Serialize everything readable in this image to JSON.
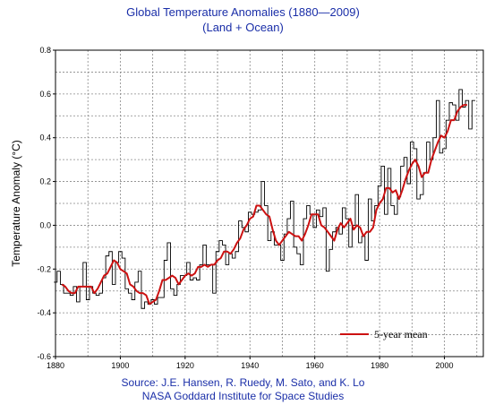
{
  "chart_data": {
    "type": "line",
    "title": "Global Temperature Anomalies (1880—2009)",
    "subtitle": "(Land + Ocean)",
    "xlabel": "",
    "ylabel": "Temperature Anomaly (°C)",
    "xlim": [
      1880,
      2012
    ],
    "ylim": [
      -0.6,
      0.8
    ],
    "xticks": [
      1880,
      1900,
      1920,
      1940,
      1960,
      1980,
      2000
    ],
    "yticks": [
      -0.6,
      -0.4,
      -0.2,
      0.0,
      0.2,
      0.4,
      0.6,
      0.8
    ],
    "ytick_labels": [
      "-0.6",
      "-0.4",
      "-0.2",
      "0.0",
      "0.2",
      "0.4",
      "0.6",
      "0.8"
    ],
    "grid": true,
    "legend_position": "bottom-right",
    "annual": {
      "x": [
        1880,
        1881,
        1882,
        1883,
        1884,
        1885,
        1886,
        1887,
        1888,
        1889,
        1890,
        1891,
        1892,
        1893,
        1894,
        1895,
        1896,
        1897,
        1898,
        1899,
        1900,
        1901,
        1902,
        1903,
        1904,
        1905,
        1906,
        1907,
        1908,
        1909,
        1910,
        1911,
        1912,
        1913,
        1914,
        1915,
        1916,
        1917,
        1918,
        1919,
        1920,
        1921,
        1922,
        1923,
        1924,
        1925,
        1926,
        1927,
        1928,
        1929,
        1930,
        1931,
        1932,
        1933,
        1934,
        1935,
        1936,
        1937,
        1938,
        1939,
        1940,
        1941,
        1942,
        1943,
        1944,
        1945,
        1946,
        1947,
        1948,
        1949,
        1950,
        1951,
        1952,
        1953,
        1954,
        1955,
        1956,
        1957,
        1958,
        1959,
        1960,
        1961,
        1962,
        1963,
        1964,
        1965,
        1966,
        1967,
        1968,
        1969,
        1970,
        1971,
        1972,
        1973,
        1974,
        1975,
        1976,
        1977,
        1978,
        1979,
        1980,
        1981,
        1982,
        1983,
        1984,
        1985,
        1986,
        1987,
        1988,
        1989,
        1990,
        1991,
        1992,
        1993,
        1994,
        1995,
        1996,
        1997,
        1998,
        1999,
        2000,
        2001,
        2002,
        2003,
        2004,
        2005,
        2006,
        2007,
        2008,
        2009
      ],
      "y": [
        -0.26,
        -0.21,
        -0.27,
        -0.31,
        -0.31,
        -0.32,
        -0.28,
        -0.35,
        -0.28,
        -0.17,
        -0.34,
        -0.28,
        -0.31,
        -0.32,
        -0.31,
        -0.24,
        -0.14,
        -0.12,
        -0.27,
        -0.17,
        -0.12,
        -0.15,
        -0.29,
        -0.31,
        -0.34,
        -0.26,
        -0.21,
        -0.38,
        -0.35,
        -0.36,
        -0.34,
        -0.36,
        -0.33,
        -0.33,
        -0.16,
        -0.08,
        -0.29,
        -0.32,
        -0.27,
        -0.23,
        -0.23,
        -0.17,
        -0.25,
        -0.24,
        -0.25,
        -0.18,
        -0.09,
        -0.18,
        -0.18,
        -0.31,
        -0.12,
        -0.07,
        -0.09,
        -0.18,
        -0.13,
        -0.15,
        -0.12,
        0.02,
        -0.01,
        -0.03,
        0.06,
        0.05,
        0.06,
        0.07,
        0.2,
        0.09,
        -0.07,
        -0.03,
        -0.09,
        -0.09,
        -0.16,
        -0.04,
        0.03,
        0.11,
        -0.1,
        -0.13,
        -0.18,
        0.03,
        0.09,
        0.05,
        -0.01,
        0.07,
        0.04,
        0.08,
        -0.21,
        -0.11,
        -0.03,
        -0.01,
        -0.04,
        0.08,
        0.03,
        -0.1,
        0.0,
        0.14,
        -0.08,
        -0.05,
        -0.16,
        0.12,
        0.02,
        0.09,
        0.18,
        0.27,
        0.05,
        0.26,
        0.09,
        0.05,
        0.13,
        0.27,
        0.31,
        0.19,
        0.38,
        0.35,
        0.12,
        0.14,
        0.24,
        0.38,
        0.3,
        0.4,
        0.57,
        0.33,
        0.35,
        0.48,
        0.56,
        0.55,
        0.48,
        0.62,
        0.54,
        0.57,
        0.44,
        0.57
      ]
    },
    "series": [
      {
        "name": "5-year mean",
        "x": [
          1882,
          1883,
          1884,
          1885,
          1886,
          1887,
          1888,
          1889,
          1890,
          1891,
          1892,
          1893,
          1894,
          1895,
          1896,
          1897,
          1898,
          1899,
          1900,
          1901,
          1902,
          1903,
          1904,
          1905,
          1906,
          1907,
          1908,
          1909,
          1910,
          1911,
          1912,
          1913,
          1914,
          1915,
          1916,
          1917,
          1918,
          1919,
          1920,
          1921,
          1922,
          1923,
          1924,
          1925,
          1926,
          1927,
          1928,
          1929,
          1930,
          1931,
          1932,
          1933,
          1934,
          1935,
          1936,
          1937,
          1938,
          1939,
          1940,
          1941,
          1942,
          1943,
          1944,
          1945,
          1946,
          1947,
          1948,
          1949,
          1950,
          1951,
          1952,
          1953,
          1954,
          1955,
          1956,
          1957,
          1958,
          1959,
          1960,
          1961,
          1962,
          1963,
          1964,
          1965,
          1966,
          1967,
          1968,
          1969,
          1970,
          1971,
          1972,
          1973,
          1974,
          1975,
          1976,
          1977,
          1978,
          1979,
          1980,
          1981,
          1982,
          1983,
          1984,
          1985,
          1986,
          1987,
          1988,
          1989,
          1990,
          1991,
          1992,
          1993,
          1994,
          1995,
          1996,
          1997,
          1998,
          1999,
          2000,
          2001,
          2002,
          2003,
          2004,
          2005,
          2006,
          2007
        ],
        "y": [
          -0.27,
          -0.28,
          -0.3,
          -0.31,
          -0.31,
          -0.28,
          -0.28,
          -0.28,
          -0.28,
          -0.28,
          -0.31,
          -0.29,
          -0.26,
          -0.23,
          -0.22,
          -0.19,
          -0.16,
          -0.17,
          -0.2,
          -0.21,
          -0.22,
          -0.27,
          -0.28,
          -0.3,
          -0.31,
          -0.31,
          -0.32,
          -0.36,
          -0.35,
          -0.34,
          -0.3,
          -0.25,
          -0.25,
          -0.24,
          -0.23,
          -0.24,
          -0.27,
          -0.25,
          -0.23,
          -0.22,
          -0.23,
          -0.22,
          -0.19,
          -0.19,
          -0.18,
          -0.19,
          -0.18,
          -0.18,
          -0.16,
          -0.15,
          -0.12,
          -0.12,
          -0.13,
          -0.11,
          -0.08,
          -0.06,
          -0.02,
          0.0,
          0.03,
          0.04,
          0.09,
          0.09,
          0.07,
          0.05,
          0.04,
          -0.02,
          -0.07,
          -0.09,
          -0.07,
          -0.05,
          -0.03,
          -0.04,
          -0.05,
          -0.05,
          -0.07,
          -0.04,
          0.0,
          0.05,
          0.05,
          0.05,
          0.0,
          -0.01,
          -0.03,
          -0.05,
          -0.07,
          -0.02,
          0.01,
          -0.01,
          0.01,
          0.03,
          -0.02,
          0.0,
          -0.01,
          -0.05,
          -0.03,
          -0.03,
          -0.01,
          0.07,
          0.1,
          0.12,
          0.17,
          0.17,
          0.15,
          0.16,
          0.12,
          0.16,
          0.21,
          0.25,
          0.28,
          0.3,
          0.27,
          0.22,
          0.24,
          0.24,
          0.3,
          0.34,
          0.38,
          0.41,
          0.4,
          0.43,
          0.48,
          0.48,
          0.52,
          0.54,
          0.55,
          0.55
        ]
      }
    ]
  },
  "source": {
    "line1": "Source: J.E. Hansen, R. Ruedy, M. Sato, and K. Lo",
    "line2": "NASA Goddard Institute for Space Studies"
  },
  "colors": {
    "title": "#1a2ea8",
    "annual_line": "#000000",
    "mean_line": "#cc1111",
    "grid": "#888888"
  }
}
